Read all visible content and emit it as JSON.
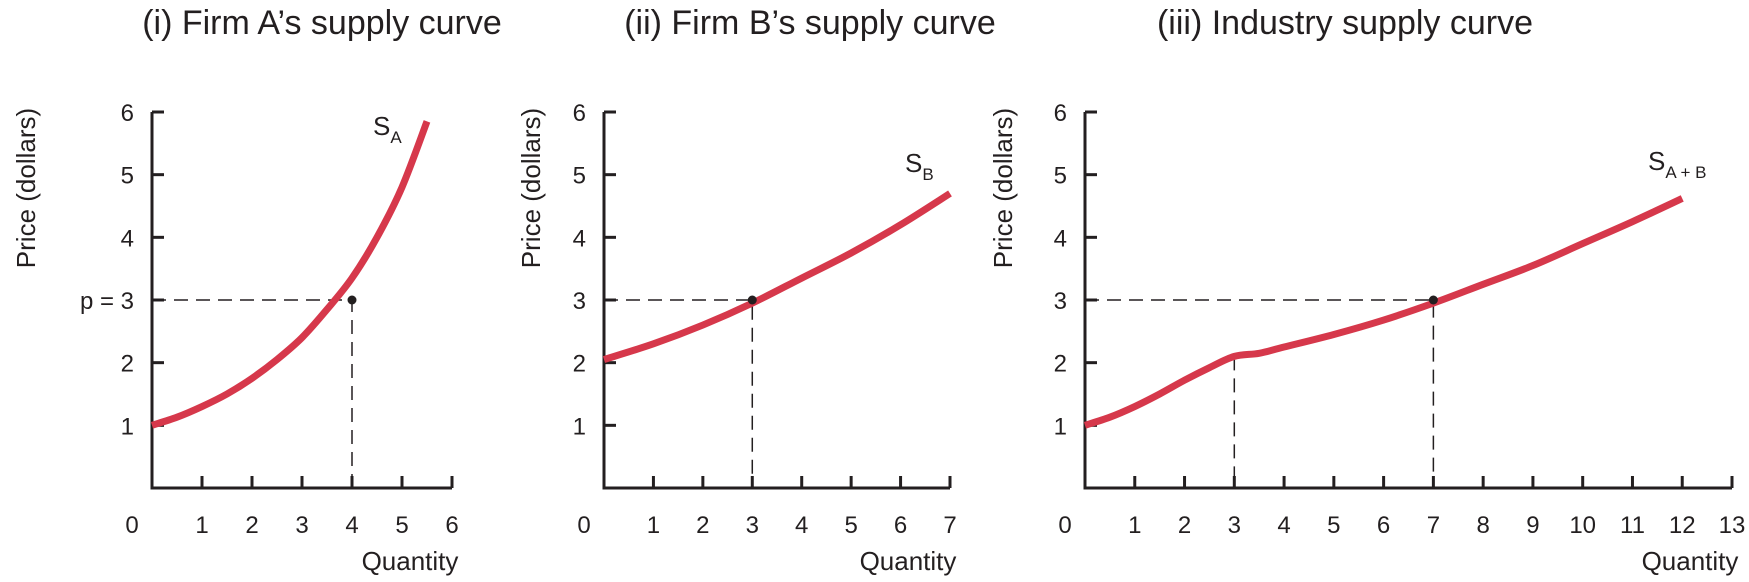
{
  "chart_data": [
    {
      "type": "line",
      "title": "(i) Firm A’s supply curve",
      "xlabel": "Quantity",
      "ylabel": "Price (dollars)",
      "xlim": [
        0,
        6
      ],
      "ylim": [
        0,
        6
      ],
      "x_ticks": [
        "0",
        "1",
        "2",
        "3",
        "4",
        "5",
        "6"
      ],
      "y_ticks": [
        "",
        "1",
        "2",
        "p = 3",
        "4",
        "5",
        "6"
      ],
      "grid": false,
      "series": [
        {
          "label_main": "S",
          "label_sub": "A",
          "color": "#d6384b",
          "points": [
            [
              0,
              1.0
            ],
            [
              0.5,
              1.13
            ],
            [
              1,
              1.3
            ],
            [
              1.5,
              1.5
            ],
            [
              2,
              1.75
            ],
            [
              2.5,
              2.05
            ],
            [
              3,
              2.4
            ],
            [
              3.5,
              2.85
            ],
            [
              4,
              3.35
            ],
            [
              4.5,
              4.0
            ],
            [
              5,
              4.8
            ],
            [
              5.5,
              5.85
            ]
          ]
        }
      ],
      "marked_point": [
        4,
        3
      ]
    },
    {
      "type": "line",
      "title": "(ii) Firm B’s supply curve",
      "xlabel": "Quantity",
      "ylabel": "Price (dollars)",
      "xlim": [
        0,
        7
      ],
      "ylim": [
        0,
        6
      ],
      "x_ticks": [
        "0",
        "1",
        "2",
        "3",
        "4",
        "5",
        "6",
        "7"
      ],
      "y_ticks": [
        "",
        "1",
        "2",
        "3",
        "4",
        "5",
        "6"
      ],
      "grid": false,
      "series": [
        {
          "label_main": "S",
          "label_sub": "B",
          "color": "#d6384b",
          "points": [
            [
              0,
              2.05
            ],
            [
              1,
              2.3
            ],
            [
              2,
              2.6
            ],
            [
              3,
              2.95
            ],
            [
              4,
              3.35
            ],
            [
              5,
              3.75
            ],
            [
              6,
              4.2
            ],
            [
              7,
              4.7
            ]
          ]
        }
      ],
      "marked_point": [
        3,
        3
      ]
    },
    {
      "type": "line",
      "title": "(iii) Industry supply curve",
      "xlabel": "Quantity",
      "ylabel": "Price (dollars)",
      "xlim": [
        0,
        13
      ],
      "ylim": [
        0,
        6
      ],
      "x_ticks": [
        "0",
        "1",
        "2",
        "3",
        "4",
        "5",
        "6",
        "7",
        "8",
        "9",
        "10",
        "11",
        "12",
        "13"
      ],
      "y_ticks": [
        "",
        "1",
        "2",
        "3",
        "4",
        "5",
        "6"
      ],
      "grid": false,
      "series": [
        {
          "label_main": "S",
          "label_sub": "A + B",
          "color": "#d6384b",
          "points": [
            [
              0,
              1.0
            ],
            [
              0.5,
              1.13
            ],
            [
              1,
              1.3
            ],
            [
              1.5,
              1.5
            ],
            [
              2,
              1.72
            ],
            [
              2.5,
              1.92
            ],
            [
              3,
              2.1
            ],
            [
              3.5,
              2.15
            ],
            [
              4,
              2.25
            ],
            [
              5,
              2.45
            ],
            [
              6,
              2.68
            ],
            [
              7,
              2.95
            ],
            [
              8,
              3.25
            ],
            [
              9,
              3.55
            ],
            [
              10,
              3.9
            ],
            [
              11,
              4.25
            ],
            [
              12,
              4.62
            ]
          ]
        }
      ],
      "marked_point": [
        7,
        3
      ],
      "kink_x": 3
    }
  ]
}
